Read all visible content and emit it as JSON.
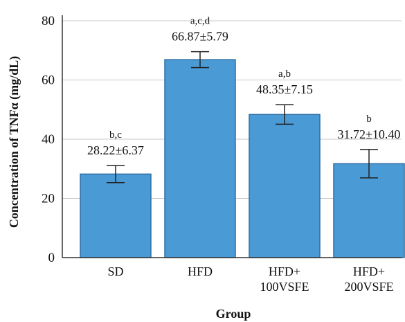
{
  "chart_data": {
    "type": "bar",
    "categories": [
      "SD",
      "HFD",
      "HFD+ 100VSFE",
      "HFD+ 200VSFE"
    ],
    "category_lines": [
      [
        "SD"
      ],
      [
        "HFD"
      ],
      [
        "HFD+",
        "100VSFE"
      ],
      [
        "HFD+",
        "200VSFE"
      ]
    ],
    "values": [
      28.22,
      66.87,
      48.35,
      31.72
    ],
    "errors": [
      2.9,
      2.7,
      3.3,
      4.8
    ],
    "significance_labels": [
      "b,c",
      "a,c,d",
      "a,b",
      "b"
    ],
    "value_labels": [
      "28.22±6.37",
      "66.87±5.79",
      "48.35±7.15",
      "31.72±10.40"
    ],
    "xlabel": "Group",
    "ylabel": "Concentration of TNFα (mg/dL)",
    "ylim": [
      0,
      80
    ],
    "yticks": [
      0,
      20,
      40,
      60,
      80
    ],
    "grid": true,
    "bar_color": "#4a9ad6",
    "bar_edge_color": "#2f6fa3"
  }
}
